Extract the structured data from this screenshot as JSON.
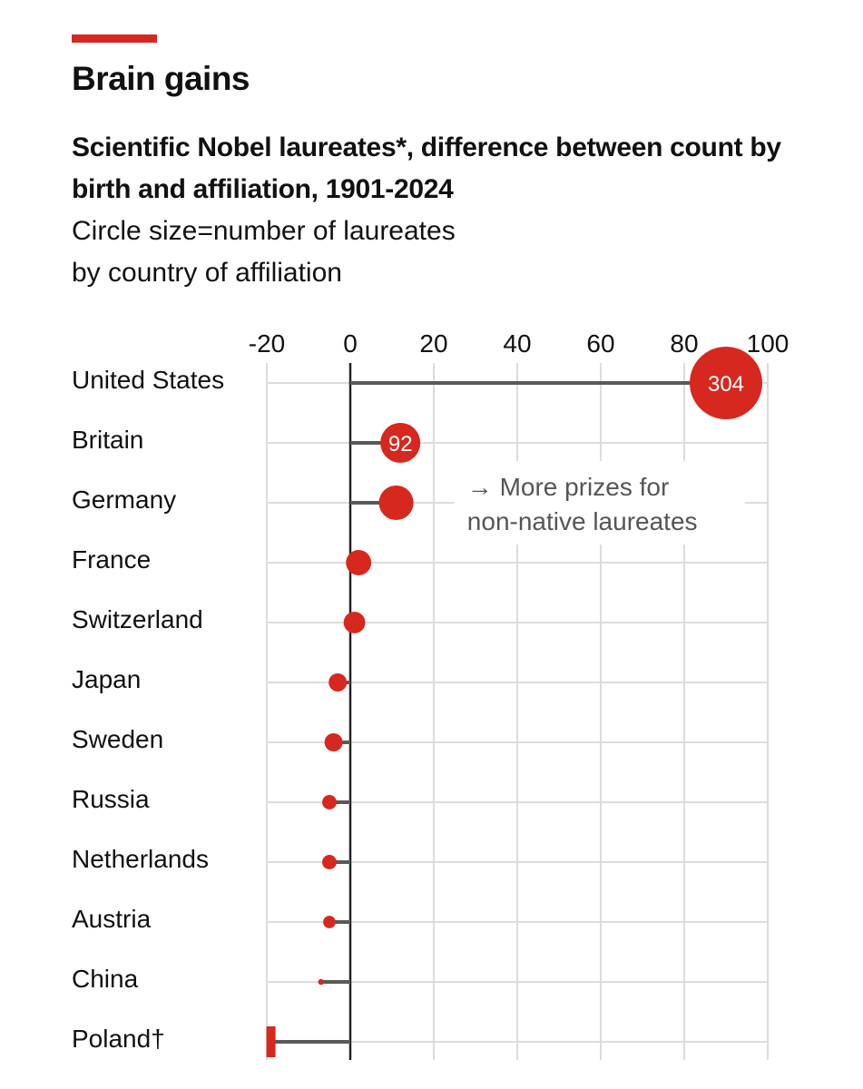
{
  "header": {
    "title": "Brain gains",
    "subtitle": "Scientific Nobel laureates*, difference between count by birth and affiliation, 1901-2024",
    "description_line1": "Circle size=number of laureates",
    "description_line2": "by country of affiliation"
  },
  "colors": {
    "accent": "#d6281e",
    "stem": "#595959",
    "grid": "#dcdcdc"
  },
  "chart_data": {
    "type": "scatter",
    "title": "Brain gains",
    "subtitle": "Scientific Nobel laureates*, difference between count by birth and affiliation, 1901-2024",
    "xlabel": "",
    "ylabel": "",
    "xlim": [
      -20,
      100
    ],
    "xticks": [
      -20,
      0,
      20,
      40,
      60,
      80,
      100
    ],
    "xtick_labels": [
      "-20",
      "0",
      "20",
      "40",
      "60",
      "80",
      "100"
    ],
    "grid": true,
    "annotation": {
      "line1": "→ More prizes for",
      "line2": "non-native laureates",
      "x": 28
    },
    "categories": [
      "United States",
      "Britain",
      "Germany",
      "France",
      "Switzerland",
      "Japan",
      "Sweden",
      "Russia",
      "Netherlands",
      "Austria",
      "China",
      "Poland†"
    ],
    "values": [
      90,
      12,
      11,
      2,
      1,
      -3,
      -4,
      -5,
      -5,
      -5,
      -7,
      -19
    ],
    "laureates_by_affiliation": [
      304,
      92,
      69,
      37,
      27,
      19,
      19,
      12,
      12,
      9,
      2,
      0
    ],
    "data_labels": [
      "304",
      "92",
      "",
      "",
      "",
      "",
      "",
      "",
      "",
      "",
      "",
      ""
    ]
  }
}
